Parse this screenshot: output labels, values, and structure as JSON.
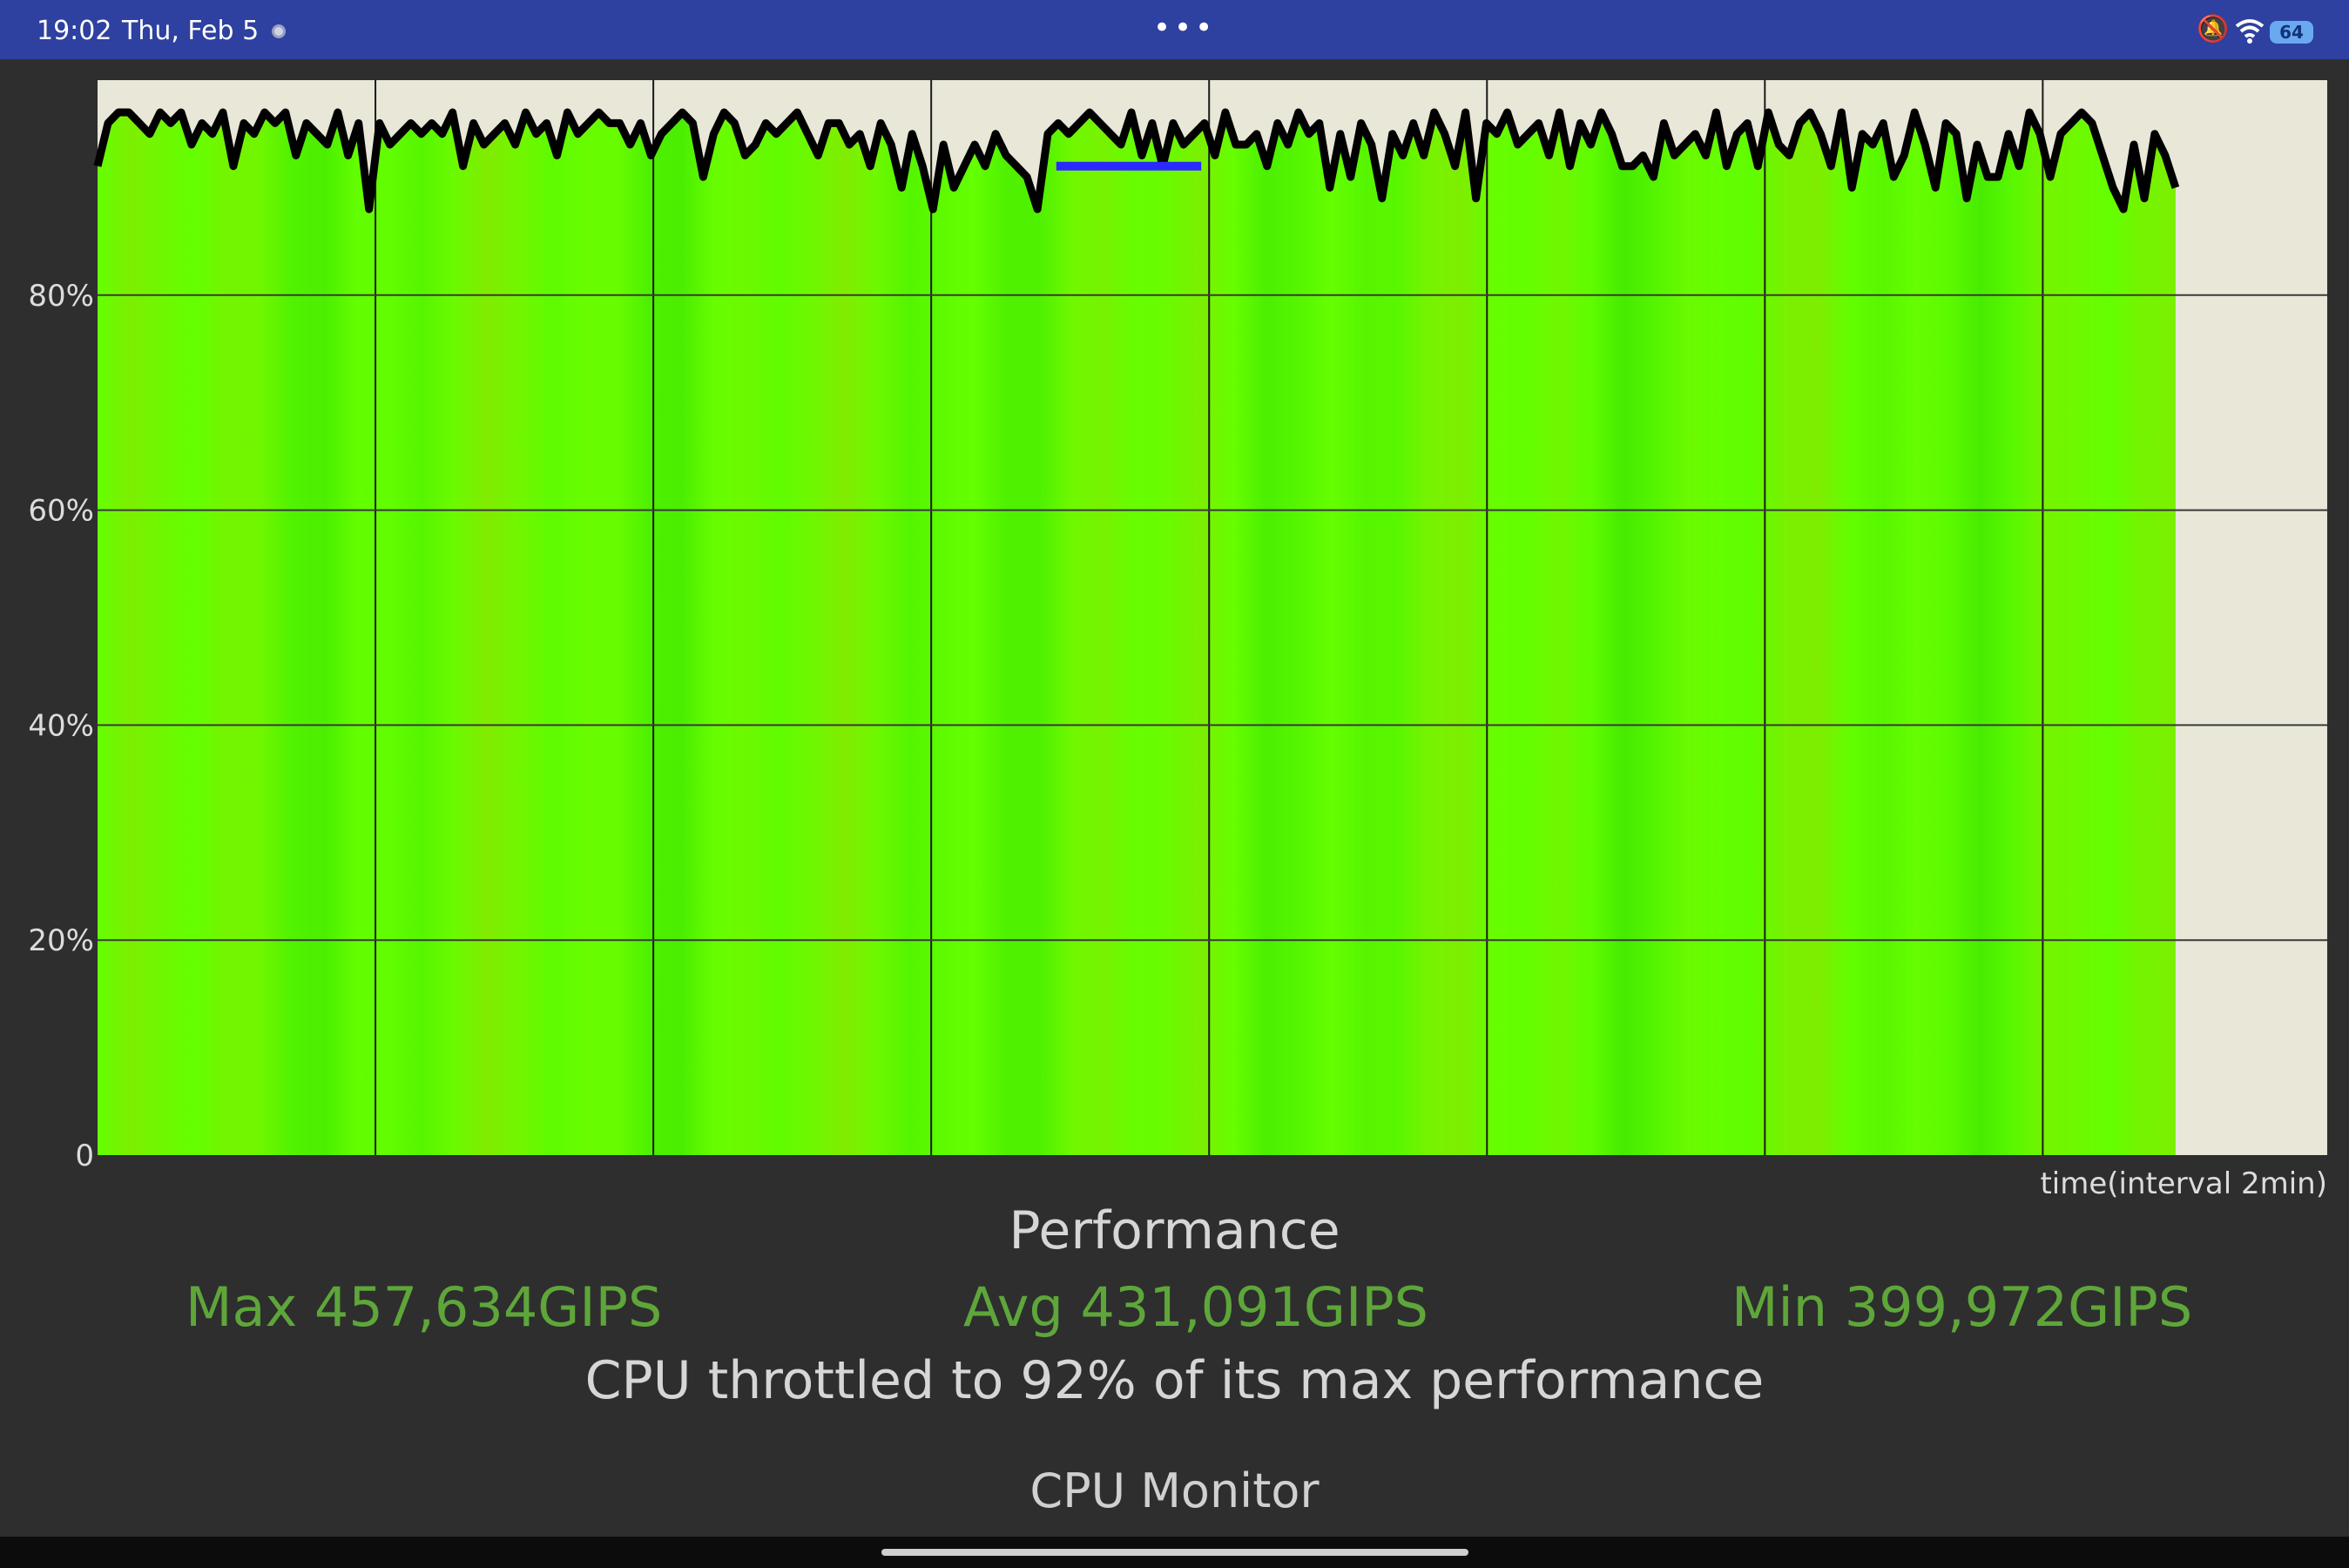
{
  "status_bar": {
    "time": "19:02",
    "date": "Thu, Feb 5",
    "battery": "64",
    "icons": [
      "record-dot-icon",
      "more-dots-icon",
      "bell-off-icon",
      "wifi-icon",
      "battery-icon"
    ]
  },
  "chart_data": {
    "type": "area",
    "title": "Performance",
    "xlabel": "time(interval 2min)",
    "ylabel": "",
    "ylim": [
      0,
      100
    ],
    "yticks": [
      "0",
      "20%",
      "40%",
      "60%",
      "80%"
    ],
    "grid": true,
    "fill_color": "#66ff00",
    "background_color": "#e8e7d8",
    "line_color": "#000000",
    "highlight_color": "#2a2aff",
    "series": [
      {
        "values": [
          92,
          96,
          97,
          97,
          96,
          95,
          97,
          96,
          97,
          94,
          96,
          95,
          97,
          92,
          96,
          95,
          97,
          96,
          97,
          93,
          96,
          95,
          94,
          97,
          93,
          96,
          88,
          96,
          94,
          95,
          96,
          95,
          96,
          95,
          97,
          92,
          96,
          94,
          95,
          96,
          94,
          97,
          95,
          96,
          93,
          97,
          95,
          96,
          97,
          96,
          96,
          94,
          96,
          93,
          95,
          96,
          97,
          96,
          91,
          95,
          97,
          96,
          93,
          94,
          96,
          95,
          96,
          97,
          95,
          93,
          96,
          96,
          94,
          95,
          92,
          96,
          94,
          90,
          95,
          92,
          88,
          94,
          90,
          92,
          94,
          92,
          95,
          93,
          92,
          91,
          88,
          95,
          96,
          95,
          96,
          97,
          96,
          95,
          94,
          97,
          93,
          96,
          92,
          96,
          94,
          95,
          96,
          93,
          97,
          94,
          94,
          95,
          92,
          96,
          94,
          97,
          95,
          96,
          90,
          95,
          91,
          96,
          94,
          89,
          95,
          93,
          96,
          93,
          97,
          95,
          92,
          97,
          89,
          96,
          95,
          97,
          94,
          95,
          96,
          93,
          97,
          92,
          96,
          94,
          97,
          95,
          92,
          92,
          93,
          91,
          96,
          93,
          94,
          95,
          93,
          97,
          92,
          95,
          96,
          92,
          97,
          94,
          93,
          96,
          97,
          95,
          92,
          97,
          90,
          95,
          94,
          96,
          91,
          93,
          97,
          94,
          90,
          96,
          95,
          89,
          94,
          91,
          91,
          95,
          92,
          97,
          95,
          91,
          95,
          96,
          97,
          96,
          93,
          90,
          88,
          94,
          89,
          95,
          93,
          90
        ]
      }
    ],
    "highlight": {
      "x_start": 0.43,
      "x_end": 0.495,
      "value": 92
    },
    "plot_end_fraction": 0.932
  },
  "texts": {
    "performance": "Performance",
    "max": "Max 457,634GIPS",
    "avg": "Avg 431,091GIPS",
    "min": "Min 399,972GIPS",
    "throttle": "CPU throttled to 92% of its max performance",
    "app_name": "CPU Monitor"
  }
}
